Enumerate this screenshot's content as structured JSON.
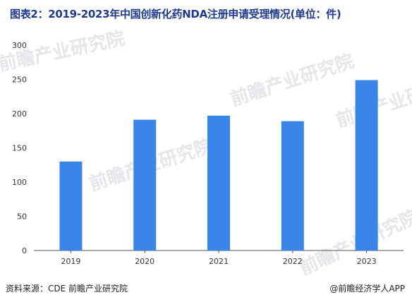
{
  "title": "图表2：2019-2023年中国创新化药NDA注册申请受理情况(单位：件)",
  "source": "资料来源：CDE 前瞻产业研究院",
  "credit": "@前瞻经济学人APP",
  "watermark": "前瞻产业研究院",
  "colors": {
    "bar": "#3a86e8",
    "axis": "#555555",
    "watermark": "#e4e6ea"
  },
  "chart_data": {
    "type": "bar",
    "categories": [
      "2019",
      "2020",
      "2021",
      "2022",
      "2023"
    ],
    "values": [
      130,
      191,
      197,
      189,
      249
    ],
    "title": "图表2：2019-2023年中国创新化药NDA注册申请受理情况(单位：件)",
    "xlabel": "",
    "ylabel": "",
    "ylim": [
      0,
      300
    ],
    "yticks": [
      0,
      50,
      100,
      150,
      200,
      250,
      300
    ],
    "grid": false
  }
}
